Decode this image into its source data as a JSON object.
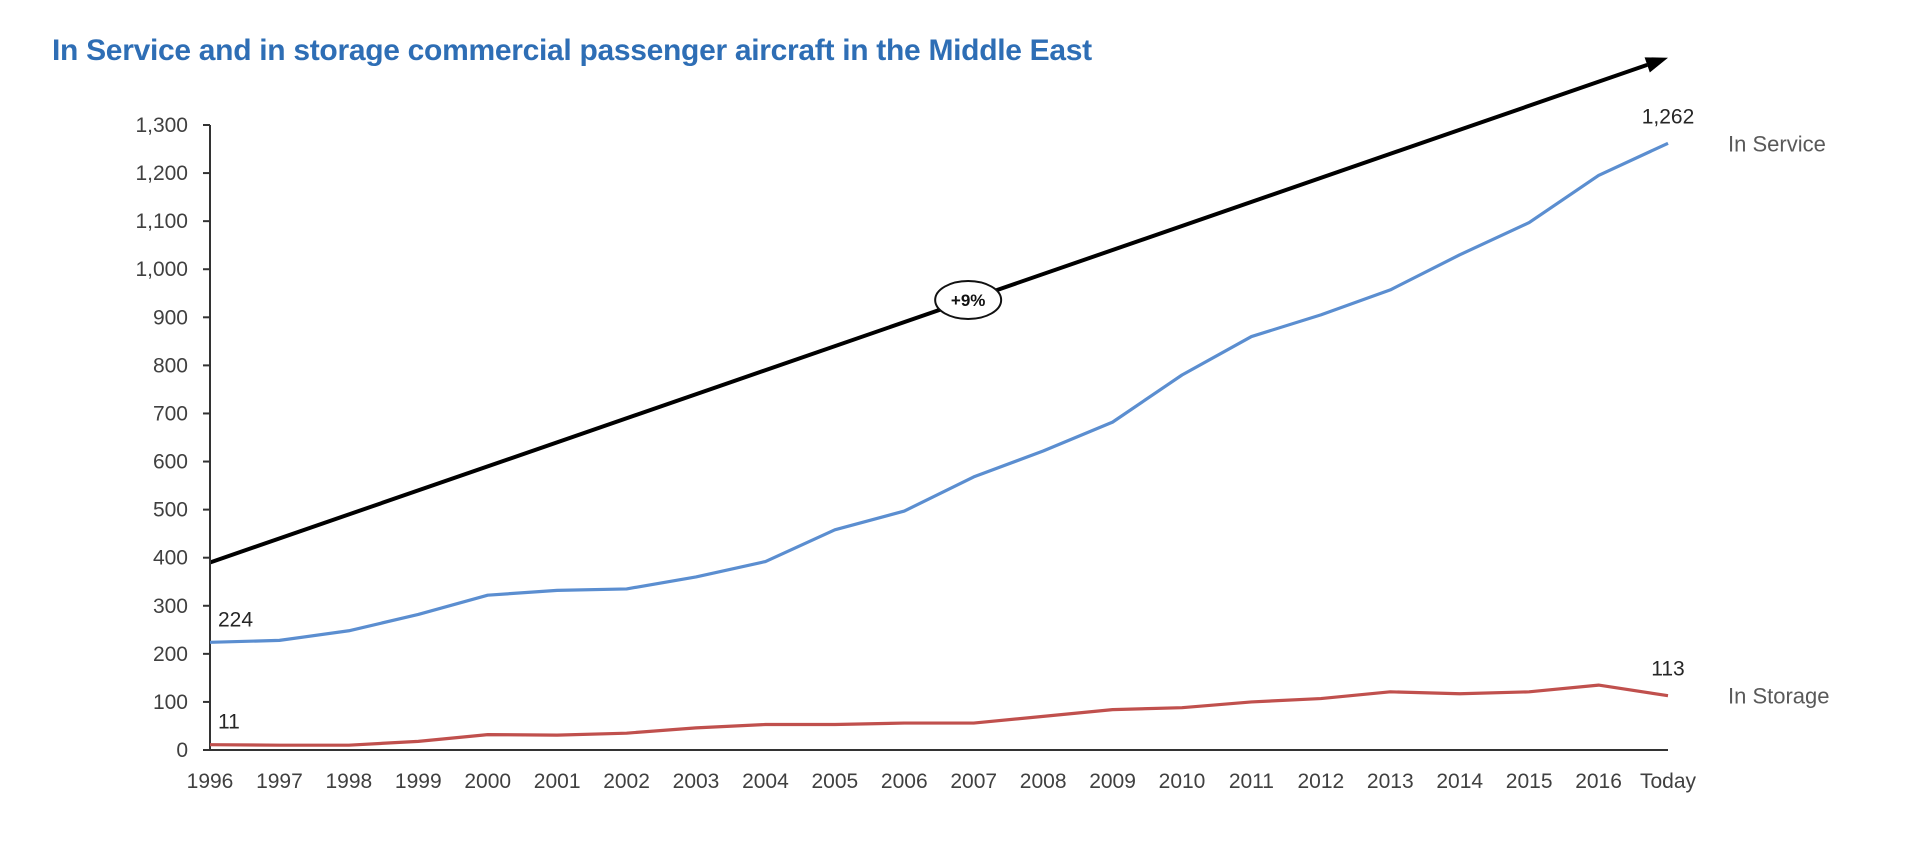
{
  "chart_data": {
    "type": "line",
    "title": "In Service and in storage commercial passenger aircraft in the Middle East",
    "xlabel": "",
    "ylabel": "",
    "categories": [
      "1996",
      "1997",
      "1998",
      "1999",
      "2000",
      "2001",
      "2002",
      "2003",
      "2004",
      "2005",
      "2006",
      "2007",
      "2008",
      "2009",
      "2010",
      "2011",
      "2012",
      "2013",
      "2014",
      "2015",
      "2016",
      "Today"
    ],
    "ylim": [
      0,
      1300
    ],
    "yticks": [
      0,
      100,
      200,
      300,
      400,
      500,
      600,
      700,
      800,
      900,
      1000,
      1100,
      1200,
      1300
    ],
    "ytick_labels": [
      "0",
      "100",
      "200",
      "300",
      "400",
      "500",
      "600",
      "700",
      "800",
      "900",
      "1,000",
      "1,100",
      "1,200",
      "1,300"
    ],
    "grid": false,
    "series": [
      {
        "name": "In Service",
        "color": "#5b8ed0",
        "values": [
          224,
          228,
          248,
          282,
          322,
          332,
          335,
          360,
          392,
          458,
          497,
          568,
          622,
          682,
          780,
          860,
          905,
          957,
          1030,
          1097,
          1195,
          1262
        ],
        "start_label": "224",
        "end_label": "1,262"
      },
      {
        "name": "In Storage",
        "color": "#c0504d",
        "values": [
          11,
          10,
          10,
          18,
          32,
          31,
          35,
          46,
          53,
          53,
          56,
          56,
          70,
          84,
          88,
          100,
          107,
          121,
          117,
          121,
          135,
          113
        ],
        "start_label": "11",
        "end_label": "113"
      }
    ],
    "annotations": [
      {
        "type": "trend-arrow",
        "label": "+9%",
        "color": "#000000",
        "from": {
          "x": "1996",
          "y": 390
        },
        "to": {
          "x": "Today",
          "y": 1440
        }
      }
    ]
  }
}
